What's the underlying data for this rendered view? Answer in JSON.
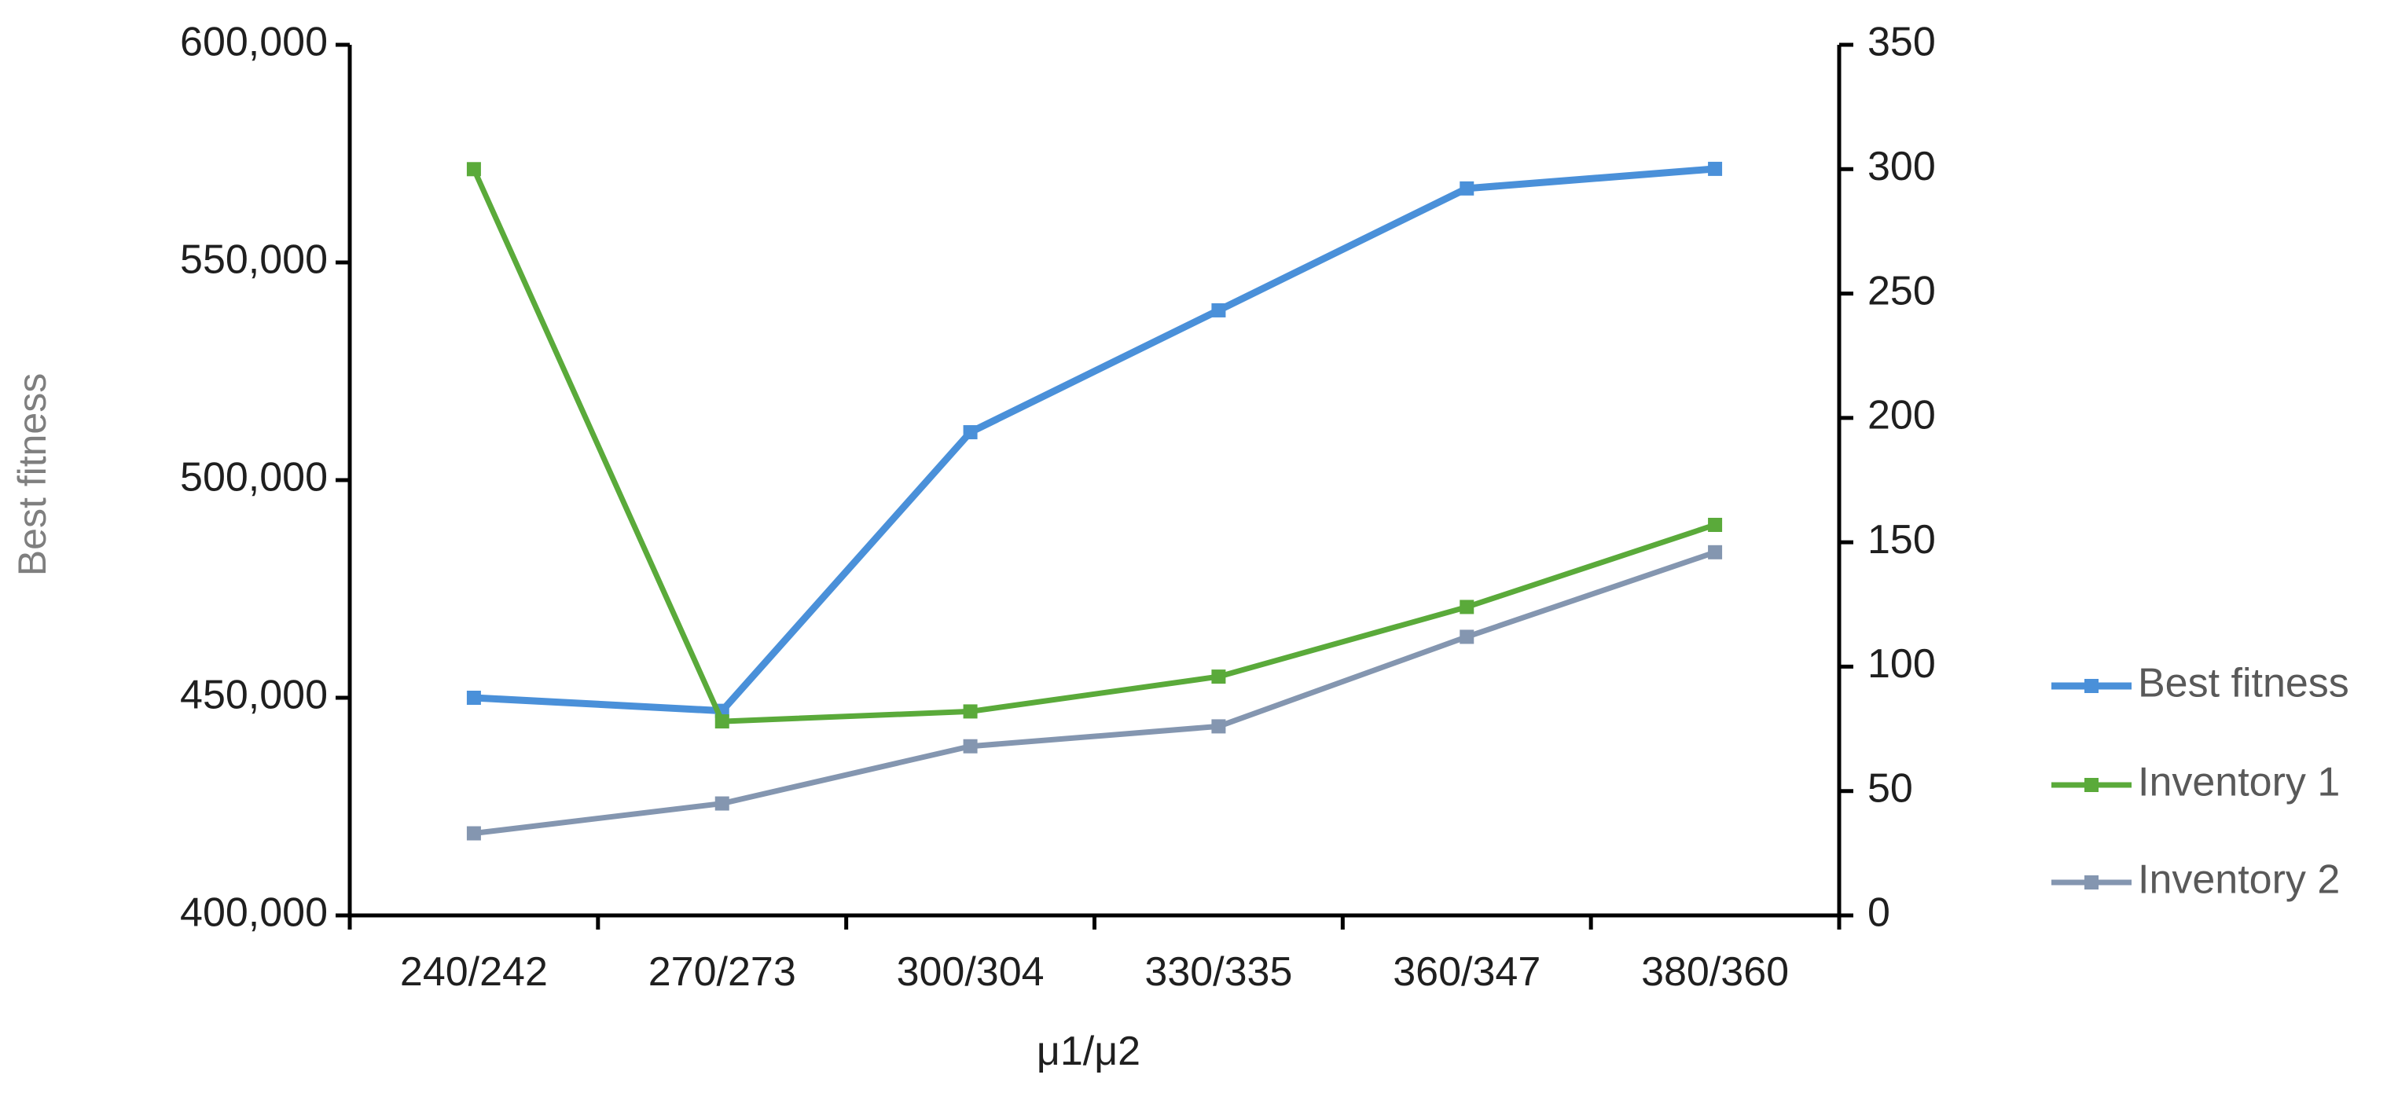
{
  "chart_data": {
    "type": "line",
    "categories": [
      "240/242",
      "270/273",
      "300/304",
      "330/335",
      "360/347",
      "380/360"
    ],
    "xlabel": "μ1/μ2",
    "ylabel": "Best fitness",
    "y_left": {
      "range": [
        400000,
        600000
      ],
      "ticks": [
        400000,
        450000,
        500000,
        550000,
        600000
      ],
      "tick_labels": [
        "400,000",
        "450,000",
        "500,000",
        "550,000",
        "600,000"
      ]
    },
    "y_right": {
      "range": [
        0,
        350
      ],
      "ticks": [
        0,
        50,
        100,
        150,
        200,
        250,
        300,
        350
      ],
      "tick_labels": [
        "0",
        "50",
        "100",
        "150",
        "200",
        "250",
        "300",
        "350"
      ]
    },
    "series": [
      {
        "name": "Best fitness",
        "axis": "left",
        "color": "#4a90d9",
        "values": [
          450000,
          447000,
          511000,
          539000,
          567000,
          571500
        ]
      },
      {
        "name": "Inventory 1",
        "axis": "right",
        "color": "#5aaa3a",
        "values": [
          300,
          78,
          82,
          96,
          124,
          157
        ]
      },
      {
        "name": "Inventory 2",
        "axis": "right",
        "color": "#8496b0",
        "values": [
          33,
          45,
          68,
          76,
          112,
          146
        ]
      }
    ],
    "legend_position": "right",
    "grid": false
  }
}
